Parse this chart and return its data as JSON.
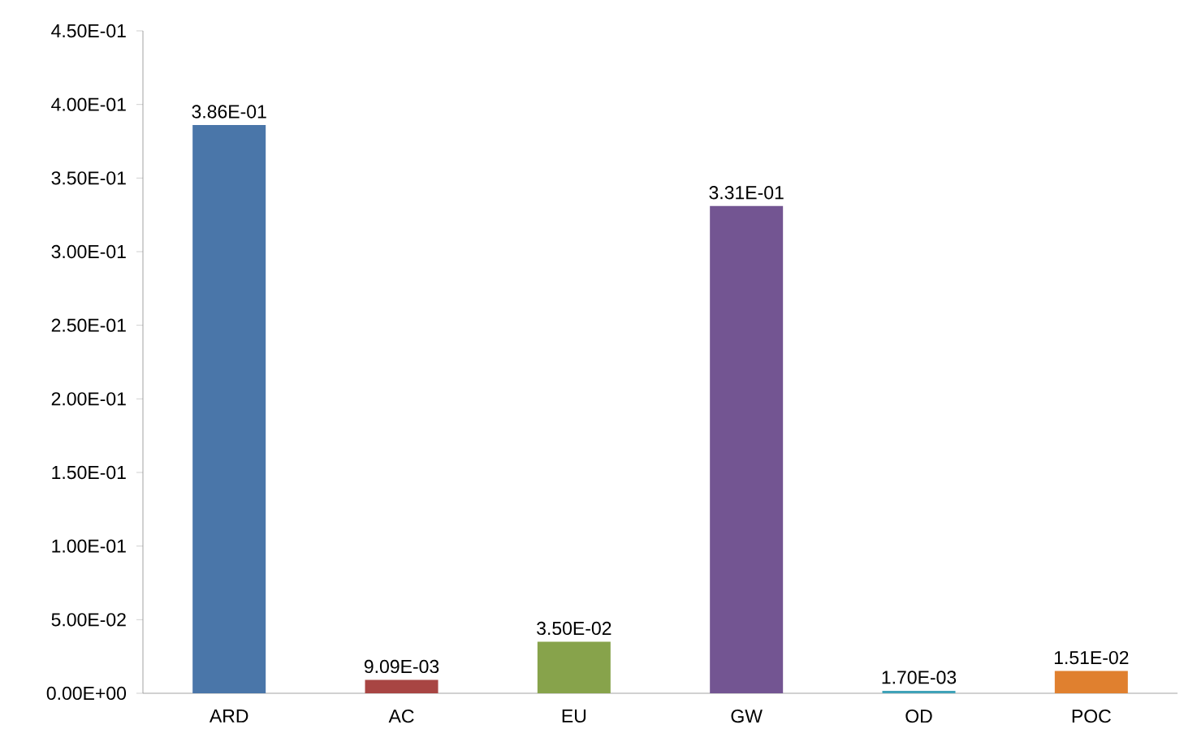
{
  "chart_data": {
    "type": "bar",
    "categories": [
      "ARD",
      "AC",
      "EU",
      "GW",
      "OD",
      "POC"
    ],
    "values": [
      0.386,
      0.00909,
      0.035,
      0.331,
      0.0017,
      0.0151
    ],
    "value_labels": [
      "3.86E-01",
      "9.09E-03",
      "3.50E-02",
      "3.31E-01",
      "1.70E-03",
      "1.51E-02"
    ],
    "colors": [
      "#4a76a9",
      "#a84543",
      "#87a34b",
      "#735592",
      "#3fa2b8",
      "#e0802f"
    ],
    "ylim": [
      0,
      0.45
    ],
    "yticks": [
      {
        "value": 0,
        "label": "0.00E+00"
      },
      {
        "value": 0.05,
        "label": "5.00E-02"
      },
      {
        "value": 0.1,
        "label": "1.00E-01"
      },
      {
        "value": 0.15,
        "label": "1.50E-01"
      },
      {
        "value": 0.2,
        "label": "2.00E-01"
      },
      {
        "value": 0.25,
        "label": "2.50E-01"
      },
      {
        "value": 0.3,
        "label": "3.00E-01"
      },
      {
        "value": 0.35,
        "label": "3.50E-01"
      },
      {
        "value": 0.4,
        "label": "4.00E-01"
      },
      {
        "value": 0.45,
        "label": "4.50E-01"
      }
    ],
    "grid": false
  }
}
